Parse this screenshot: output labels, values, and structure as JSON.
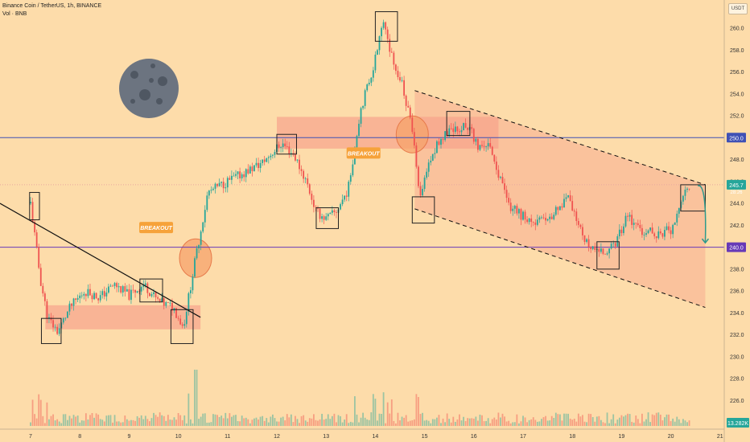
{
  "header": {
    "symbol": "Binance Coin / TetherUS, 1h, BINANCE",
    "volume": "Vol · BNB"
  },
  "currency": "USDT",
  "colors": {
    "background": "#fddcaa",
    "up": "#26a69a",
    "down": "#ef5350",
    "zone": "#f7a28c",
    "blue_line": "#3f51b5",
    "purple_line": "#673ab7"
  },
  "annotations": {
    "breakout_1": "BREAKOUT",
    "breakout_2": "BREAKOUT"
  },
  "chart_data": {
    "type": "candlestick",
    "title": "",
    "y_ticks": [
      226,
      228,
      230,
      232,
      234,
      236,
      238,
      240,
      242,
      244,
      246,
      248,
      250,
      252,
      254,
      256,
      258,
      260
    ],
    "x_ticks": [
      "7",
      "8",
      "9",
      "10",
      "11",
      "12",
      "13",
      "14",
      "15",
      "16",
      "17",
      "18",
      "19",
      "20",
      "21"
    ],
    "ylim": [
      224.5,
      262.5
    ],
    "price_labels": [
      {
        "value": 250.0,
        "text": "250.0",
        "color": "#3f51b5"
      },
      {
        "value": 245.7,
        "text": "245.7",
        "color": "#26a69a"
      },
      {
        "value": 240.0,
        "text": "240.0",
        "color": "#673ab7"
      }
    ],
    "countdown": "28:26",
    "volume_label": "13.282K",
    "horizontal_levels": [
      250.0,
      240.0
    ],
    "price_path": [
      {
        "x": 7.0,
        "y": 244.0
      },
      {
        "x": 7.2,
        "y": 237.0
      },
      {
        "x": 7.35,
        "y": 233.5
      },
      {
        "x": 7.55,
        "y": 232.3
      },
      {
        "x": 7.8,
        "y": 234.5
      },
      {
        "x": 8.1,
        "y": 236.0
      },
      {
        "x": 8.4,
        "y": 235.4
      },
      {
        "x": 8.7,
        "y": 236.6
      },
      {
        "x": 9.0,
        "y": 235.6
      },
      {
        "x": 9.3,
        "y": 236.6
      },
      {
        "x": 9.6,
        "y": 235.0
      },
      {
        "x": 9.9,
        "y": 234.5
      },
      {
        "x": 10.1,
        "y": 232.7
      },
      {
        "x": 10.35,
        "y": 239.0
      },
      {
        "x": 10.6,
        "y": 245.0
      },
      {
        "x": 11.0,
        "y": 246.0
      },
      {
        "x": 11.3,
        "y": 246.7
      },
      {
        "x": 11.7,
        "y": 247.7
      },
      {
        "x": 12.1,
        "y": 249.5
      },
      {
        "x": 12.35,
        "y": 248.4
      },
      {
        "x": 12.6,
        "y": 246.0
      },
      {
        "x": 12.8,
        "y": 243.2
      },
      {
        "x": 13.0,
        "y": 242.6
      },
      {
        "x": 13.2,
        "y": 243.2
      },
      {
        "x": 13.45,
        "y": 245.3
      },
      {
        "x": 13.7,
        "y": 252.6
      },
      {
        "x": 13.95,
        "y": 256.3
      },
      {
        "x": 14.15,
        "y": 260.6
      },
      {
        "x": 14.35,
        "y": 257.3
      },
      {
        "x": 14.55,
        "y": 254.8
      },
      {
        "x": 14.75,
        "y": 250.6
      },
      {
        "x": 14.9,
        "y": 244.3
      },
      {
        "x": 15.1,
        "y": 247.8
      },
      {
        "x": 15.3,
        "y": 249.8
      },
      {
        "x": 15.6,
        "y": 250.8
      },
      {
        "x": 15.9,
        "y": 251.0
      },
      {
        "x": 16.1,
        "y": 248.8
      },
      {
        "x": 16.3,
        "y": 249.8
      },
      {
        "x": 16.5,
        "y": 246.5
      },
      {
        "x": 16.75,
        "y": 243.6
      },
      {
        "x": 17.1,
        "y": 242.5
      },
      {
        "x": 17.5,
        "y": 242.3
      },
      {
        "x": 17.9,
        "y": 244.6
      },
      {
        "x": 18.15,
        "y": 241.5
      },
      {
        "x": 18.35,
        "y": 240.2
      },
      {
        "x": 18.55,
        "y": 239.5
      },
      {
        "x": 18.85,
        "y": 240.0
      },
      {
        "x": 19.1,
        "y": 242.8
      },
      {
        "x": 19.4,
        "y": 241.6
      },
      {
        "x": 19.7,
        "y": 241.2
      },
      {
        "x": 20.0,
        "y": 241.6
      },
      {
        "x": 20.25,
        "y": 244.5
      },
      {
        "x": 20.4,
        "y": 245.7
      }
    ]
  }
}
